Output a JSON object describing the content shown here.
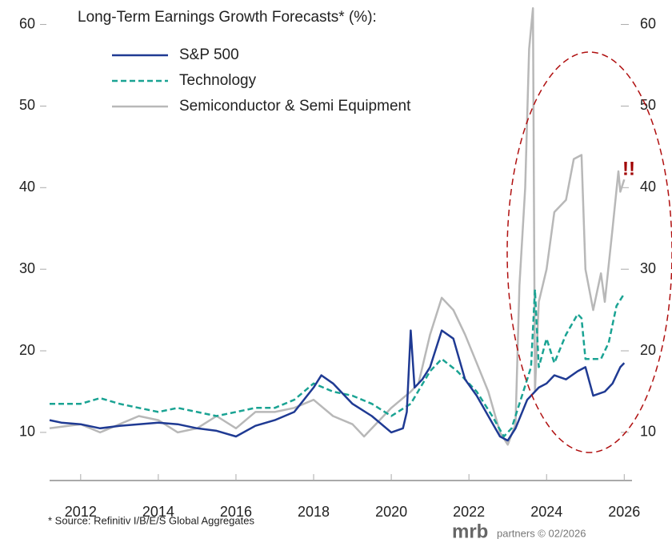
{
  "chart_data": {
    "type": "line",
    "title": "Long-Term Earnings Growth Forecasts* (%):",
    "annotation": "!!",
    "source": "* Source: Refinitiv I/B/E/S Global Aggregates",
    "branding": {
      "logo": "mrb",
      "text": "partners © 02/2026"
    },
    "xlim": [
      2011.2,
      2026.2
    ],
    "xticks": [
      2012,
      2014,
      2016,
      2018,
      2020,
      2022,
      2024,
      2026
    ],
    "ylim": [
      4.1,
      63
    ],
    "yticks": [
      10,
      20,
      30,
      40,
      50,
      60
    ],
    "series": [
      {
        "name": "S&P 500",
        "color": "#1f3a93",
        "dash": "solid",
        "x": [
          2011.2,
          2011.5,
          2012,
          2012.5,
          2013,
          2013.5,
          2014,
          2014.5,
          2015,
          2015.5,
          2016,
          2016.5,
          2017,
          2017.5,
          2018,
          2018.2,
          2018.5,
          2019,
          2019.5,
          2020,
          2020.3,
          2020.4,
          2020.5,
          2020.6,
          2020.8,
          2021,
          2021.3,
          2021.6,
          2021.9,
          2022.2,
          2022.5,
          2022.8,
          2023,
          2023.2,
          2023.5,
          2023.8,
          2024,
          2024.2,
          2024.5,
          2024.8,
          2025,
          2025.2,
          2025.5,
          2025.7,
          2025.9,
          2026
        ],
        "values": [
          11.5,
          11.2,
          11,
          10.5,
          10.8,
          11,
          11.2,
          11,
          10.5,
          10.2,
          9.5,
          10.8,
          11.5,
          12.5,
          15.5,
          17,
          16,
          13.5,
          12,
          10,
          10.5,
          12.5,
          22.5,
          15.5,
          16.5,
          18,
          22.5,
          21.5,
          16.5,
          14.5,
          12,
          9.5,
          9,
          10.5,
          14,
          15.5,
          16,
          17,
          16.5,
          17.5,
          18,
          14.5,
          15,
          16,
          18,
          18.5
        ]
      },
      {
        "name": "Technology",
        "color": "#1aa393",
        "dash": "dashed",
        "x": [
          2011.2,
          2012,
          2012.5,
          2013,
          2013.5,
          2014,
          2014.5,
          2015,
          2015.5,
          2016,
          2016.5,
          2017,
          2017.5,
          2018,
          2018.5,
          2019,
          2019.5,
          2020,
          2020.5,
          2021,
          2021.3,
          2021.7,
          2022.2,
          2022.6,
          2022.9,
          2023.1,
          2023.4,
          2023.6,
          2023.7,
          2023.8,
          2024,
          2024.2,
          2024.5,
          2024.8,
          2024.9,
          2025,
          2025.4,
          2025.6,
          2025.8,
          2026
        ],
        "values": [
          13.5,
          13.5,
          14.2,
          13.5,
          13,
          12.5,
          13,
          12.5,
          12,
          12.5,
          13,
          13,
          14,
          16,
          15,
          14.5,
          13.5,
          12,
          13.5,
          17.5,
          19,
          17.5,
          15,
          12,
          9.5,
          10.5,
          15,
          18,
          27.5,
          18,
          21.5,
          18.5,
          22,
          24.5,
          24,
          19,
          19,
          21,
          25.5,
          27
        ]
      },
      {
        "name": "Semiconductor & Semi Equipment",
        "color": "#b8b8b8",
        "dash": "solid",
        "x": [
          2011.2,
          2012,
          2012.5,
          2013,
          2013.5,
          2014,
          2014.5,
          2015,
          2015.5,
          2016,
          2016.5,
          2017,
          2017.5,
          2018,
          2018.5,
          2019,
          2019.3,
          2019.7,
          2020,
          2020.5,
          2020.7,
          2021,
          2021.3,
          2021.6,
          2021.9,
          2022.2,
          2022.5,
          2022.8,
          2023,
          2023.2,
          2023.3,
          2023.45,
          2023.55,
          2023.65,
          2023.7,
          2023.8,
          2024,
          2024.2,
          2024.5,
          2024.7,
          2024.9,
          2025,
          2025.2,
          2025.4,
          2025.5,
          2025.7,
          2025.85,
          2025.9,
          2026
        ],
        "values": [
          10.5,
          11,
          10,
          11,
          12,
          11.5,
          10,
          10.5,
          12,
          10.5,
          12.5,
          12.5,
          13,
          14,
          12,
          11,
          9.5,
          11.5,
          13,
          15,
          16,
          22,
          26.5,
          25,
          22,
          18.5,
          15,
          10,
          8.5,
          11,
          28,
          40,
          57,
          62,
          15,
          26,
          30,
          37,
          38.5,
          43.5,
          44,
          30,
          25,
          29.5,
          26,
          35,
          42,
          39.5,
          41
        ]
      }
    ]
  }
}
